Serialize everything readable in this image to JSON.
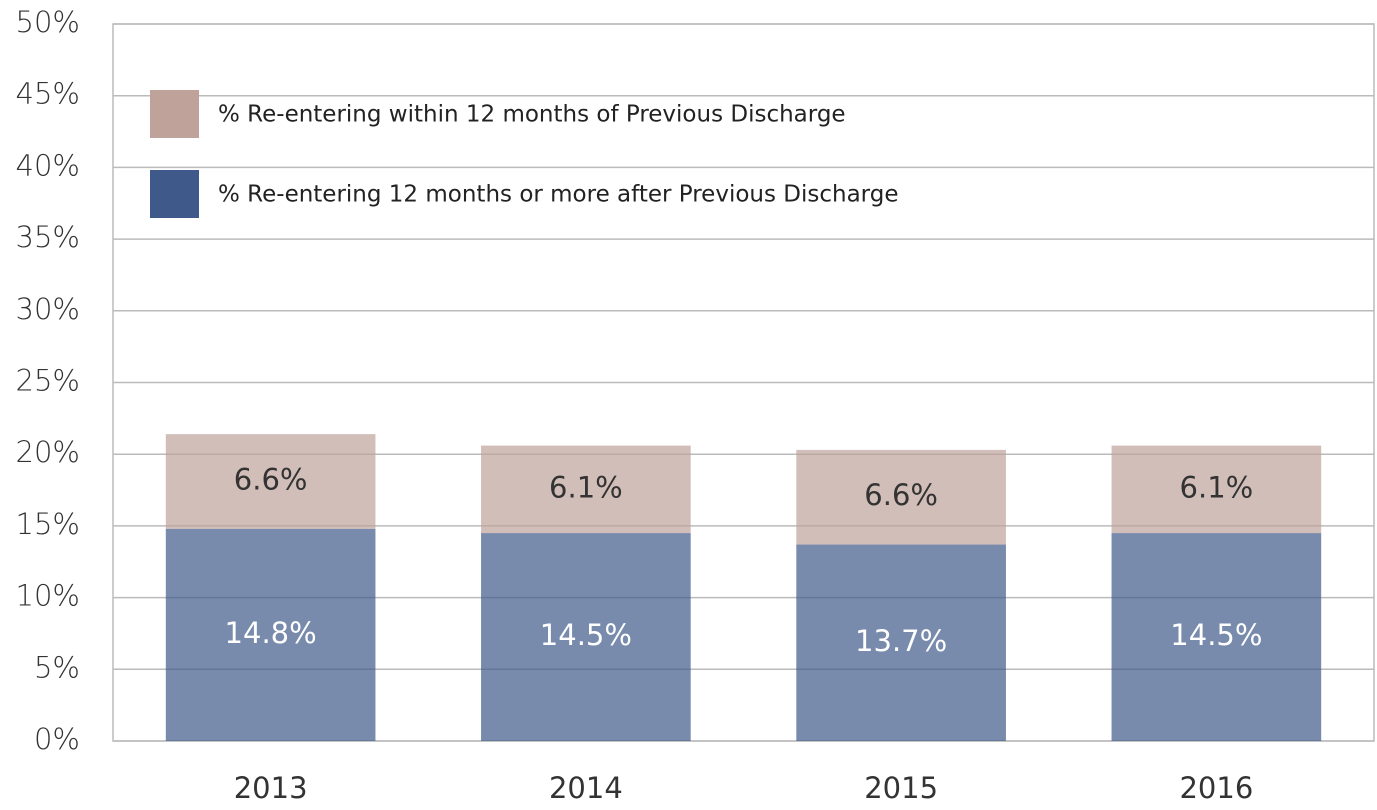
{
  "chart_data": {
    "type": "stacked_bar",
    "categories": [
      "2013",
      "2014",
      "2015",
      "2016"
    ],
    "series": [
      {
        "name": "% Re-entering 12 months or more after Previous Discharge",
        "color": "#3f5a8a",
        "values": [
          14.8,
          14.5,
          13.7,
          14.5
        ],
        "value_labels": [
          "14.8%",
          "14.5%",
          "13.7%",
          "14.5%"
        ]
      },
      {
        "name": "% Re-entering within 12 months of Previous Discharge",
        "color": "#bfa39a",
        "values": [
          6.6,
          6.1,
          6.6,
          6.1
        ],
        "value_labels": [
          "6.6%",
          "6.1%",
          "6.6%",
          "6.1%"
        ]
      }
    ],
    "ylim": [
      0,
      50
    ],
    "yticks": [
      {
        "value": 0,
        "label": "0%"
      },
      {
        "value": 5,
        "label": "5%"
      },
      {
        "value": 10,
        "label": "10%"
      },
      {
        "value": 15,
        "label": "15%"
      },
      {
        "value": 20,
        "label": "20%"
      },
      {
        "value": 25,
        "label": "25%"
      },
      {
        "value": 30,
        "label": "30%"
      },
      {
        "value": 35,
        "label": "35%"
      },
      {
        "value": 40,
        "label": "40%"
      },
      {
        "value": 45,
        "label": "45%"
      },
      {
        "value": 50,
        "label": "50%"
      }
    ],
    "grid": true,
    "legend": "top-left"
  }
}
